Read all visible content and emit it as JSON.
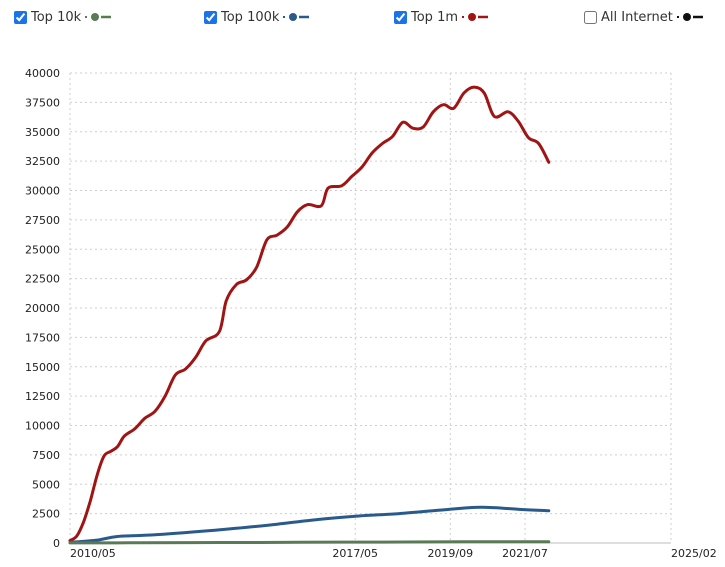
{
  "legend": {
    "items": [
      {
        "label": "Top 10k",
        "checked": true,
        "color": "#5a7a55"
      },
      {
        "label": "Top 100k",
        "checked": true,
        "color": "#2a5a8c"
      },
      {
        "label": "Top 1m",
        "checked": true,
        "color": "#a11414"
      },
      {
        "label": "All Internet",
        "checked": false,
        "color": "#111111"
      }
    ]
  },
  "chart_data": {
    "type": "line",
    "title": "",
    "xlabel": "",
    "ylabel": "",
    "ylim": [
      0,
      40000
    ],
    "yticks": [
      0,
      2500,
      5000,
      7500,
      10000,
      12500,
      15000,
      17500,
      20000,
      22500,
      25000,
      27500,
      30000,
      32500,
      35000,
      37500,
      40000
    ],
    "xlim": [
      "2010-05",
      "2025-02"
    ],
    "xtick_labels": [
      "2010/05",
      "2017/05",
      "2019/09",
      "2021/07",
      "2025/02"
    ],
    "xtick_dates": [
      "2010-05",
      "2017-05",
      "2019-09",
      "2021-07",
      "2025-02"
    ],
    "grid": true,
    "legend_position": "top",
    "series": [
      {
        "name": "Top 1m",
        "color": "#a11414",
        "points": [
          [
            "2010-05",
            200
          ],
          [
            "2010-07",
            600
          ],
          [
            "2010-09",
            1800
          ],
          [
            "2010-11",
            3600
          ],
          [
            "2011-01",
            5800
          ],
          [
            "2011-03",
            7400
          ],
          [
            "2011-05",
            7800
          ],
          [
            "2011-07",
            8200
          ],
          [
            "2011-09",
            9100
          ],
          [
            "2011-12",
            9700
          ],
          [
            "2012-03",
            10600
          ],
          [
            "2012-06",
            11200
          ],
          [
            "2012-09",
            12500
          ],
          [
            "2012-12",
            14300
          ],
          [
            "2013-03",
            14800
          ],
          [
            "2013-06",
            15800
          ],
          [
            "2013-09",
            17200
          ],
          [
            "2014-01",
            18000
          ],
          [
            "2014-03",
            20600
          ],
          [
            "2014-06",
            22000
          ],
          [
            "2014-09",
            22400
          ],
          [
            "2014-12",
            23500
          ],
          [
            "2015-03",
            25800
          ],
          [
            "2015-06",
            26200
          ],
          [
            "2015-09",
            26900
          ],
          [
            "2015-12",
            28200
          ],
          [
            "2016-03",
            28800
          ],
          [
            "2016-07",
            28700
          ],
          [
            "2016-09",
            30200
          ],
          [
            "2017-01",
            30400
          ],
          [
            "2017-04",
            31200
          ],
          [
            "2017-07",
            32000
          ],
          [
            "2017-10",
            33200
          ],
          [
            "2018-01",
            34000
          ],
          [
            "2018-04",
            34600
          ],
          [
            "2018-07",
            35800
          ],
          [
            "2018-10",
            35300
          ],
          [
            "2019-01",
            35400
          ],
          [
            "2019-04",
            36700
          ],
          [
            "2019-07",
            37300
          ],
          [
            "2019-10",
            37000
          ],
          [
            "2020-01",
            38300
          ],
          [
            "2020-04",
            38800
          ],
          [
            "2020-07",
            38300
          ],
          [
            "2020-10",
            36300
          ],
          [
            "2021-02",
            36700
          ],
          [
            "2021-05",
            35900
          ],
          [
            "2021-08",
            34500
          ],
          [
            "2021-11",
            34000
          ],
          [
            "2022-02",
            32400
          ]
        ]
      },
      {
        "name": "Top 100k",
        "color": "#2a5a8c",
        "points": [
          [
            "2010-05",
            50
          ],
          [
            "2011-01",
            250
          ],
          [
            "2011-07",
            550
          ],
          [
            "2012-06",
            700
          ],
          [
            "2013-06",
            950
          ],
          [
            "2014-06",
            1250
          ],
          [
            "2015-06",
            1600
          ],
          [
            "2016-06",
            2000
          ],
          [
            "2017-06",
            2300
          ],
          [
            "2018-06",
            2500
          ],
          [
            "2019-06",
            2800
          ],
          [
            "2020-06",
            3050
          ],
          [
            "2021-06",
            2850
          ],
          [
            "2022-02",
            2750
          ]
        ]
      },
      {
        "name": "Top 10k",
        "color": "#5a7a55",
        "points": [
          [
            "2010-05",
            5
          ],
          [
            "2012-01",
            20
          ],
          [
            "2014-01",
            40
          ],
          [
            "2016-01",
            60
          ],
          [
            "2018-01",
            80
          ],
          [
            "2020-01",
            100
          ],
          [
            "2022-02",
            110
          ]
        ]
      }
    ]
  }
}
